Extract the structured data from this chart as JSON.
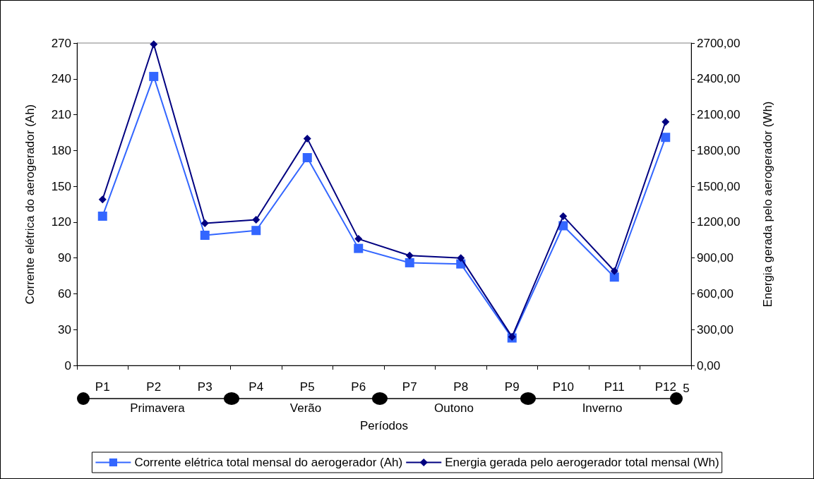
{
  "chart_data": {
    "type": "line",
    "xlabel": "Períodos",
    "ylabel": "Corrente elétrica do aerogerador (Ah)",
    "y2label": "Energia gerada pelo aerogerador (Wh)",
    "categories": [
      "P1",
      "P2",
      "P3",
      "P4",
      "P5",
      "P6",
      "P7",
      "P8",
      "P9",
      "P10",
      "P11",
      "P12"
    ],
    "series": [
      {
        "name": "Corrente elétrica total mensal do aerogerador (Ah)",
        "color": "#3366ff",
        "marker": "square",
        "values": [
          125,
          242,
          109,
          113,
          174,
          98,
          86,
          85,
          23,
          117,
          74,
          191
        ]
      },
      {
        "name": "Energia gerada pelo aerogerador total mensal (Wh)",
        "color": "#000080",
        "marker": "diamond",
        "axis": "y2",
        "values": [
          1390,
          2690,
          1190,
          1220,
          1900,
          1060,
          920,
          900,
          240,
          1250,
          790,
          2040
        ]
      }
    ],
    "ylim": [
      0,
      270
    ],
    "yticks": [
      0,
      30,
      60,
      90,
      120,
      150,
      180,
      210,
      240,
      270
    ],
    "y2lim": [
      0,
      2700
    ],
    "y2ticks": [
      {
        "value": 0,
        "label": "0,00"
      },
      {
        "value": 300,
        "label": "300,00"
      },
      {
        "value": 600,
        "label": "600,00"
      },
      {
        "value": 900,
        "label": "900,00"
      },
      {
        "value": 1200,
        "label": "1200,00"
      },
      {
        "value": 1500,
        "label": "1500,00"
      },
      {
        "value": 1800,
        "label": "1800,00"
      },
      {
        "value": 2100,
        "label": "2100,00"
      },
      {
        "value": 2400,
        "label": "2400,00"
      },
      {
        "value": 2700,
        "label": "2700,00"
      }
    ],
    "annotations": [
      "Primavera",
      "Verão",
      "Outono",
      "Inverno",
      "5"
    ],
    "grid": false,
    "legend": "bottom",
    "line_style": "solid"
  }
}
